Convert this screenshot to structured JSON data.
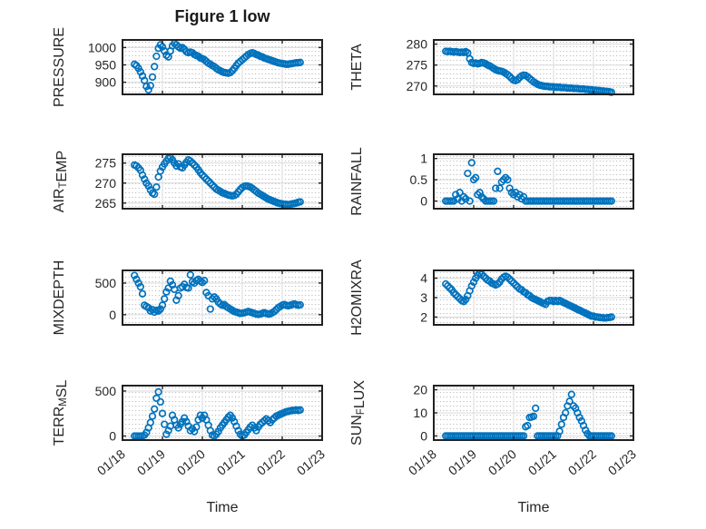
{
  "figure": {
    "title": "Figure 1 low",
    "marker_color": "#0072BD",
    "frame_color": "#212121",
    "text_color": "#262626",
    "major_grid_color": "#d9d9d9",
    "minor_grid_color": "#b0b0b0",
    "background": "#ffffff"
  },
  "time_axis": {
    "label": "Time",
    "tick_labels": [
      "01/18",
      "01/19",
      "01/20",
      "01/21",
      "01/22",
      "01/23"
    ],
    "tick_positions_days": [
      0,
      1,
      2,
      3,
      4,
      5
    ],
    "xlim_days": [
      0,
      5
    ],
    "tick_rotation_deg": -40
  },
  "chart_data": {
    "type": "scatter",
    "marker": "open-circle",
    "x_unit": "days since 01/18 00:00",
    "t": [
      0.3,
      0.35,
      0.4,
      0.45,
      0.5,
      0.55,
      0.6,
      0.65,
      0.7,
      0.75,
      0.8,
      0.85,
      0.9,
      0.95,
      1,
      1.05,
      1.1,
      1.15,
      1.2,
      1.25,
      1.3,
      1.35,
      1.4,
      1.45,
      1.5,
      1.55,
      1.6,
      1.65,
      1.7,
      1.75,
      1.8,
      1.85,
      1.9,
      1.95,
      2,
      2.05,
      2.1,
      2.15,
      2.2,
      2.25,
      2.3,
      2.35,
      2.4,
      2.45,
      2.5,
      2.55,
      2.6,
      2.65,
      2.7,
      2.75,
      2.8,
      2.85,
      2.9,
      2.95,
      3,
      3.05,
      3.1,
      3.15,
      3.2,
      3.25,
      3.3,
      3.35,
      3.4,
      3.45,
      3.5,
      3.55,
      3.6,
      3.65,
      3.7,
      3.75,
      3.8,
      3.85,
      3.9,
      3.95,
      4,
      4.05,
      4.1,
      4.15,
      4.2,
      4.25,
      4.3,
      4.35,
      4.4,
      4.45
    ],
    "subplots": [
      {
        "id": "pressure",
        "ylabel_rich": [
          [
            "PRESSURE",
            false
          ]
        ],
        "yticks": [
          1000,
          950,
          900
        ],
        "ytick_labels": [
          "1000",
          "950",
          "900"
        ],
        "ylim": [
          865,
          1022
        ],
        "values": [
          952,
          948,
          940,
          930,
          918,
          905,
          888,
          878,
          890,
          915,
          945,
          975,
          998,
          1008,
          1002,
          990,
          978,
          973,
          990,
          1005,
          1012,
          1008,
          1002,
          998,
          1000,
          995,
          988,
          985,
          987,
          985,
          980,
          977,
          975,
          970,
          968,
          965,
          960,
          955,
          952,
          948,
          945,
          940,
          936,
          933,
          930,
          928,
          927,
          926,
          928,
          933,
          940,
          948,
          955,
          960,
          965,
          970,
          975,
          980,
          983,
          985,
          983,
          980,
          978,
          975,
          973,
          970,
          968,
          966,
          964,
          962,
          960,
          958,
          956,
          955,
          954,
          953,
          952,
          952,
          953,
          954,
          955,
          956,
          956,
          957
        ]
      },
      {
        "id": "theta",
        "ylabel_rich": [
          [
            "THETA",
            false
          ]
        ],
        "yticks": [
          280,
          275,
          270
        ],
        "ytick_labels": [
          "280",
          "275",
          "270"
        ],
        "ylim": [
          268,
          281
        ],
        "values": [
          278.3,
          278.2,
          278.3,
          278.2,
          278.1,
          278.2,
          278.1,
          278,
          278.1,
          278,
          278.2,
          277.9,
          276.5,
          275.6,
          275.4,
          275.5,
          275.3,
          275.4,
          275.6,
          275.5,
          275.3,
          275,
          274.8,
          274.5,
          274.2,
          273.9,
          273.7,
          273.6,
          273.5,
          273.3,
          273,
          272.7,
          272.3,
          271.8,
          271.4,
          271.3,
          271.5,
          272,
          272.4,
          272.6,
          272.5,
          272.2,
          271.8,
          271.4,
          271,
          270.7,
          270.4,
          270.2,
          270.1,
          270,
          269.9,
          269.9,
          269.8,
          269.8,
          269.8,
          269.7,
          269.7,
          269.7,
          269.6,
          269.6,
          269.6,
          269.5,
          269.5,
          269.5,
          269.4,
          269.4,
          269.4,
          269.3,
          269.3,
          269.3,
          269.2,
          269.2,
          269.1,
          269.1,
          269,
          269,
          268.9,
          268.9,
          268.8,
          268.8,
          268.7,
          268.7,
          268.6,
          268.5
        ]
      },
      {
        "id": "air-temp",
        "ylabel_rich": [
          [
            "AIR",
            false
          ],
          [
            "T",
            true
          ],
          [
            "EMP",
            false
          ]
        ],
        "yticks": [
          275,
          270,
          265
        ],
        "ytick_labels": [
          "275",
          "270",
          "265"
        ],
        "ylim": [
          263.6,
          277.2
        ],
        "values": [
          274.5,
          274.3,
          273.8,
          273.2,
          272,
          271,
          270,
          269.3,
          268.3,
          267.5,
          267.2,
          269,
          271.5,
          273,
          274,
          274.8,
          275.5,
          276.2,
          276.4,
          275.8,
          275,
          274.3,
          274.8,
          274,
          273.8,
          274.5,
          275.2,
          275.8,
          275.5,
          275,
          274.5,
          274,
          273.3,
          272.6,
          272,
          271.5,
          271,
          270.5,
          270,
          269.5,
          269,
          268.5,
          268.2,
          267.9,
          267.6,
          267.4,
          267.2,
          267,
          266.9,
          266.8,
          266.9,
          267.2,
          267.8,
          268.4,
          268.9,
          269.2,
          269.3,
          269.2,
          269,
          268.7,
          268.3,
          267.9,
          267.5,
          267.2,
          266.9,
          266.6,
          266.3,
          266,
          265.8,
          265.6,
          265.4,
          265.2,
          265,
          264.9,
          264.8,
          264.7,
          264.7,
          264.6,
          264.7,
          264.8,
          264.9,
          265,
          265.2,
          265.3
        ]
      },
      {
        "id": "rainfall",
        "ylabel_rich": [
          [
            "RAINFALL",
            false
          ]
        ],
        "yticks": [
          1,
          0.5,
          0
        ],
        "ytick_labels": [
          "1",
          "0.5",
          "0"
        ],
        "ylim": [
          -0.18,
          1.1
        ],
        "values": [
          0,
          0,
          0,
          0,
          0,
          0.15,
          0.05,
          0.2,
          0,
          0.1,
          0.05,
          0.65,
          0,
          0.9,
          0.5,
          0.55,
          0.15,
          0.2,
          0.1,
          0.05,
          0,
          0,
          0,
          0,
          0,
          0.3,
          0.7,
          0.3,
          0.45,
          0.5,
          0.55,
          0.5,
          0.3,
          0.2,
          0.15,
          0.2,
          0.1,
          0.15,
          0.05,
          0.1,
          0,
          0,
          0,
          0,
          0,
          0,
          0,
          0,
          0,
          0,
          0,
          0,
          0,
          0,
          0,
          0,
          0,
          0,
          0,
          0,
          0,
          0,
          0,
          0,
          0,
          0,
          0,
          0,
          0,
          0,
          0,
          0,
          0,
          0,
          0,
          0,
          0,
          0,
          0,
          0,
          0,
          0,
          0,
          0
        ]
      },
      {
        "id": "mixdepth",
        "ylabel_rich": [
          [
            "MIXDEPTH",
            false
          ]
        ],
        "yticks": [
          500,
          0
        ],
        "ytick_labels": [
          "500",
          "0"
        ],
        "ylim": [
          -160,
          700
        ],
        "values": [
          620,
          560,
          500,
          440,
          330,
          150,
          130,
          110,
          60,
          80,
          40,
          70,
          60,
          90,
          150,
          250,
          360,
          420,
          530,
          470,
          400,
          230,
          300,
          420,
          440,
          480,
          430,
          420,
          630,
          520,
          500,
          540,
          560,
          530,
          510,
          540,
          350,
          300,
          90,
          250,
          280,
          250,
          200,
          170,
          150,
          160,
          130,
          110,
          90,
          70,
          50,
          40,
          30,
          20,
          25,
          30,
          40,
          50,
          40,
          30,
          20,
          10,
          5,
          10,
          20,
          30,
          20,
          10,
          15,
          30,
          50,
          80,
          110,
          130,
          150,
          160,
          150,
          140,
          150,
          160,
          170,
          160,
          150,
          155
        ]
      },
      {
        "id": "h2omixra",
        "ylabel_rich": [
          [
            "H2OMIXRA",
            false
          ]
        ],
        "yticks": [
          4,
          3,
          2
        ],
        "ytick_labels": [
          "4",
          "3",
          "2"
        ],
        "ylim": [
          1.6,
          4.4
        ],
        "values": [
          3.7,
          3.6,
          3.5,
          3.4,
          3.25,
          3.15,
          3.05,
          2.95,
          2.85,
          2.8,
          2.9,
          3.1,
          3.35,
          3.6,
          3.8,
          4,
          4.15,
          4.25,
          4.2,
          4.1,
          4,
          3.9,
          3.85,
          3.75,
          3.7,
          3.65,
          3.7,
          3.8,
          3.95,
          4.05,
          4.1,
          4.05,
          3.95,
          3.85,
          3.75,
          3.65,
          3.55,
          3.45,
          3.4,
          3.3,
          3.25,
          3.15,
          3.1,
          3,
          2.95,
          2.9,
          2.85,
          2.8,
          2.75,
          2.7,
          2.65,
          2.8,
          2.85,
          2.85,
          2.8,
          2.85,
          2.8,
          2.85,
          2.8,
          2.75,
          2.7,
          2.65,
          2.6,
          2.55,
          2.5,
          2.45,
          2.4,
          2.35,
          2.3,
          2.25,
          2.2,
          2.15,
          2.1,
          2.05,
          2.05,
          2,
          2,
          1.98,
          1.97,
          1.96,
          1.95,
          1.97,
          1.98,
          2
        ]
      },
      {
        "id": "terr-msl",
        "ylabel_rich": [
          [
            "TERR",
            false
          ],
          [
            "M",
            true
          ],
          [
            "SL",
            false
          ]
        ],
        "yticks": [
          500,
          0
        ],
        "ytick_labels": [
          "500",
          "0"
        ],
        "ylim": [
          -45,
          560
        ],
        "values": [
          0,
          0,
          0,
          0,
          0,
          10,
          40,
          90,
          150,
          220,
          300,
          420,
          490,
          380,
          250,
          130,
          20,
          60,
          110,
          230,
          180,
          120,
          90,
          130,
          160,
          200,
          160,
          110,
          60,
          80,
          50,
          100,
          180,
          230,
          200,
          230,
          180,
          120,
          60,
          10,
          0,
          20,
          50,
          90,
          120,
          150,
          180,
          210,
          230,
          200,
          160,
          110,
          60,
          20,
          0,
          10,
          40,
          70,
          100,
          120,
          90,
          60,
          100,
          130,
          150,
          170,
          190,
          170,
          150,
          180,
          200,
          220,
          230,
          240,
          250,
          260,
          270,
          275,
          280,
          285,
          285,
          290,
          285,
          290
        ]
      },
      {
        "id": "sun-flux",
        "ylabel_rich": [
          [
            "SUN",
            false
          ],
          [
            "F",
            true
          ],
          [
            "LUX",
            false
          ]
        ],
        "yticks": [
          20,
          10,
          0
        ],
        "ytick_labels": [
          "20",
          "10",
          "0"
        ],
        "ylim": [
          -1.8,
          21.8
        ],
        "values": [
          0,
          0,
          0,
          0,
          0,
          0,
          0,
          0,
          0,
          0,
          0,
          0,
          0,
          0,
          0,
          0,
          0,
          0,
          0,
          0,
          0,
          0,
          0,
          0,
          0,
          0,
          0,
          0,
          0,
          0,
          0,
          0,
          0,
          0,
          0,
          0,
          0,
          0,
          0,
          0,
          4,
          4.5,
          8,
          8.2,
          8.5,
          12,
          0,
          0,
          0,
          0,
          0,
          0,
          0,
          0,
          0,
          0,
          0,
          2,
          5,
          8,
          10,
          13,
          15,
          18,
          13,
          12,
          10,
          8,
          6.5,
          4.5,
          2.5,
          1,
          0,
          0,
          0,
          0,
          0,
          0,
          0,
          0,
          0,
          0,
          0,
          0
        ]
      }
    ]
  }
}
